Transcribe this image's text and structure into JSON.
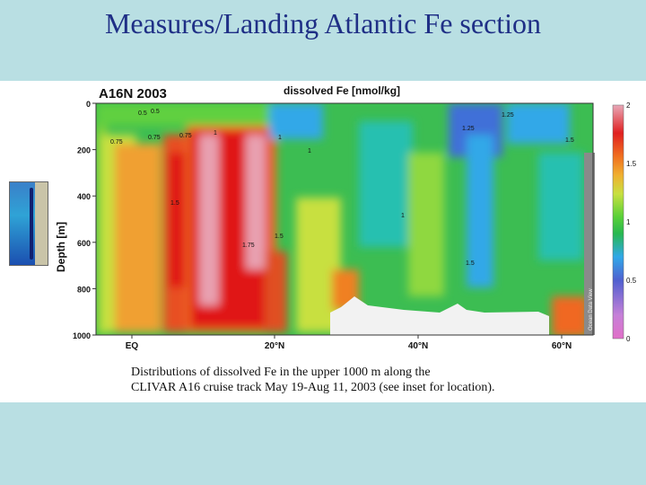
{
  "slide": {
    "title": "Measures/Landing Atlantic Fe section"
  },
  "figure": {
    "caption_line1": "Distributions of dissolved Fe in the upper 1000 m along the",
    "caption_line2": "CLIVAR A16 cruise track May 19-Aug 11, 2003 (see inset for location).",
    "watermark": "Ocean Data View"
  },
  "chart_data": {
    "type": "heatmap",
    "title": "A16N 2003",
    "variable": "dissolved Fe [nmol/kg]",
    "ylabel": "Depth [m]",
    "xlabel": "",
    "x_ticks": [
      "EQ",
      "20°N",
      "40°N",
      "60°N"
    ],
    "y_ticks": [
      0,
      200,
      400,
      600,
      800,
      1000
    ],
    "ylim": [
      1000,
      0
    ],
    "colorbar": {
      "range": [
        0,
        2
      ],
      "ticks": [
        "2",
        "1.5",
        "1",
        "0.5",
        "0"
      ],
      "colors": [
        "#e070c8",
        "#c680d8",
        "#5060d0",
        "#30a8e8",
        "#28b850",
        "#58d038",
        "#c8e040",
        "#f0b030",
        "#f07020",
        "#e02020",
        "#e8a8b8"
      ]
    },
    "contour_labels": [
      "0.5",
      "0.5",
      "0.75",
      "0.75",
      "0.75",
      "1",
      "1",
      "1",
      "1",
      "1.25",
      "1.25",
      "1.5",
      "1.5",
      "1.5",
      "1.5",
      "1.75"
    ]
  }
}
